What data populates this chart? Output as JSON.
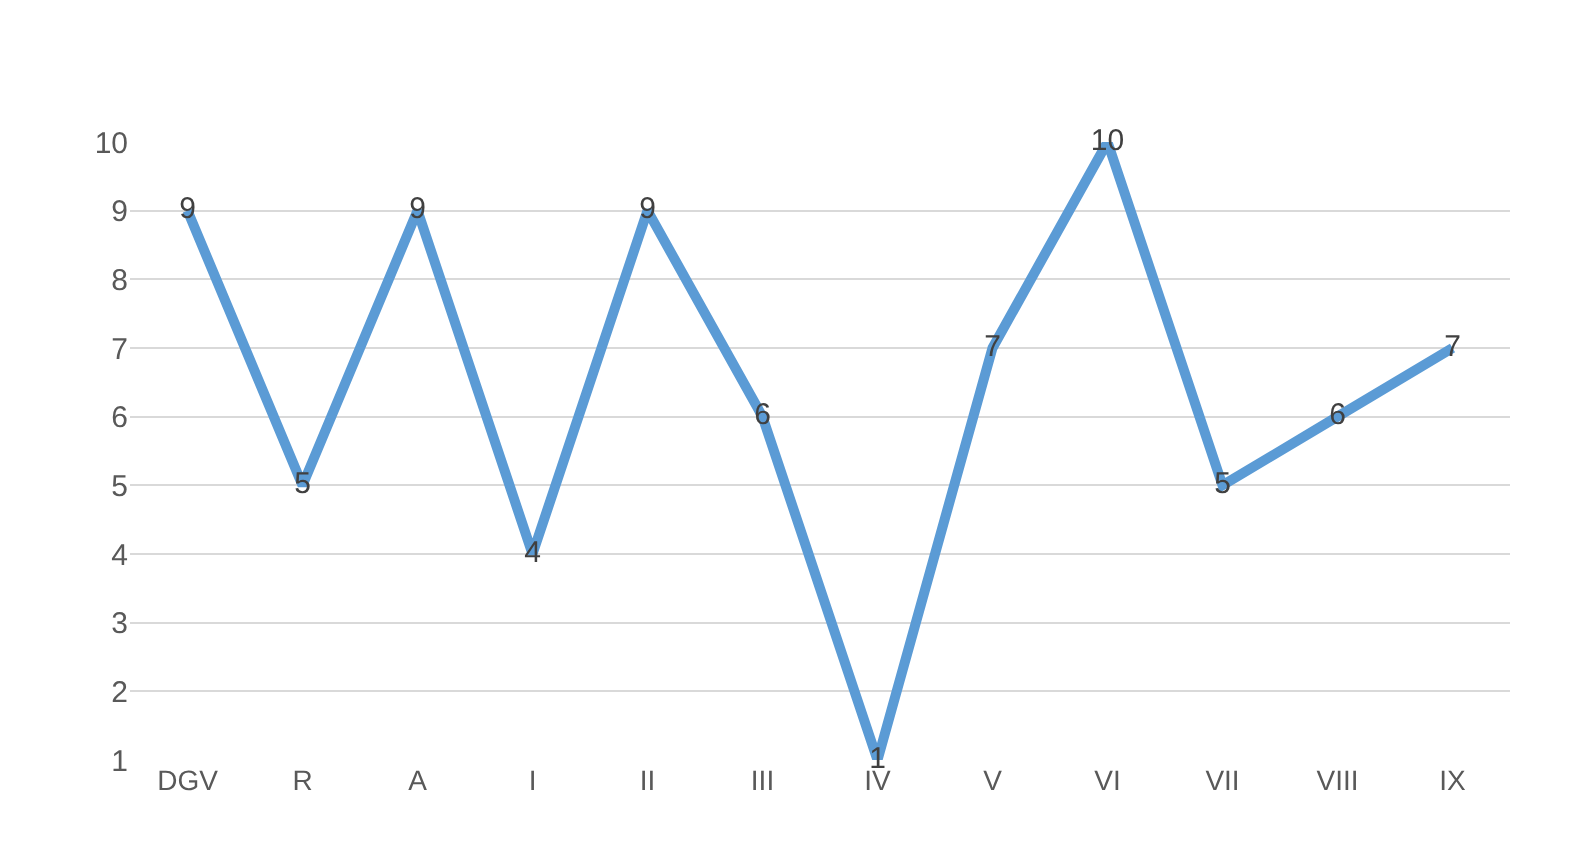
{
  "chart_data": {
    "type": "line",
    "categories": [
      "DGV",
      "R",
      "A",
      "I",
      "II",
      "III",
      "IV",
      "V",
      "VI",
      "VII",
      "VIII",
      "IX"
    ],
    "series": [
      {
        "color": "#5b9bd5",
        "values": [
          9,
          5,
          9,
          4,
          9,
          6,
          1,
          7,
          10,
          5,
          6,
          7
        ]
      }
    ],
    "ylim": [
      1,
      10
    ],
    "yticks": [
      1,
      2,
      3,
      4,
      5,
      6,
      7,
      8,
      9,
      10
    ],
    "grid": "y",
    "marker": "none",
    "line_style": "solid",
    "data_labels": true
  }
}
